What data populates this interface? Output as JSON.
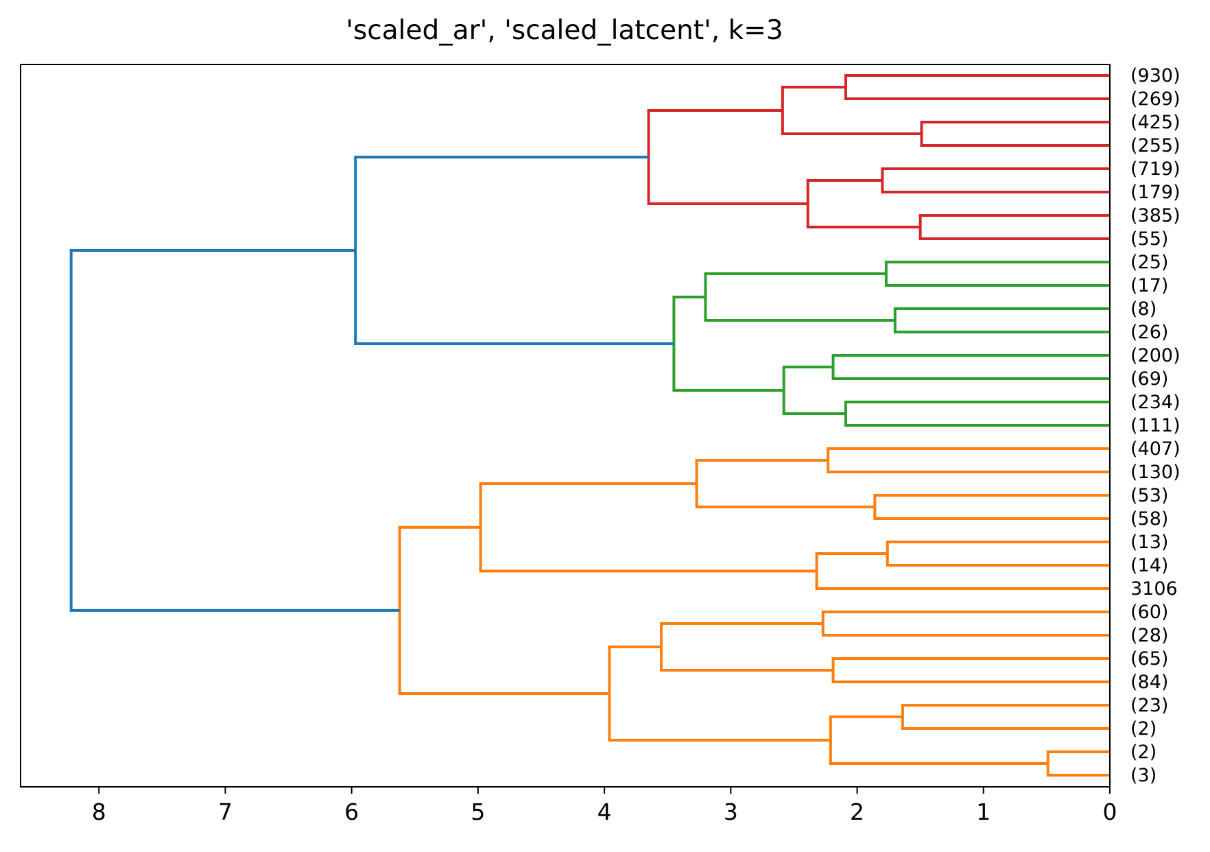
{
  "chart_data": {
    "type": "dendrogram",
    "orientation": "left",
    "title": "'scaled_ar', 'scaled_latcent', k=3",
    "xlabel": "",
    "ylabel": "",
    "xlim": [
      8.62,
      0
    ],
    "xticks": [
      8,
      7,
      6,
      5,
      4,
      3,
      2,
      1,
      0
    ],
    "leaves": [
      "(930)",
      "(269)",
      "(425)",
      "(255)",
      "(719)",
      "(179)",
      "(385)",
      "(55)",
      "(25)",
      "(17)",
      "(8)",
      "(26)",
      "(200)",
      "(69)",
      "(234)",
      "(111)",
      "(407)",
      "(130)",
      "(53)",
      "(58)",
      "(13)",
      "(14)",
      "3106",
      "(60)",
      "(28)",
      "(65)",
      "(84)",
      "(23)",
      "(2)",
      "(2)",
      "(3)"
    ],
    "colors": {
      "cluster_red": "#d62728",
      "cluster_green": "#2ca02c",
      "cluster_orange": "#ff7f0e",
      "above_threshold": "#1f77b4"
    },
    "merges": [
      {
        "id": "r1",
        "a": 0,
        "b": 1,
        "height": 2.09,
        "color": "cluster_red"
      },
      {
        "id": "r2",
        "a": 2,
        "b": 3,
        "height": 1.49,
        "color": "cluster_red"
      },
      {
        "id": "r3",
        "a": "r1",
        "b": "r2",
        "height": 2.59,
        "color": "cluster_red"
      },
      {
        "id": "r4",
        "a": 4,
        "b": 5,
        "height": 1.8,
        "color": "cluster_red"
      },
      {
        "id": "r5",
        "a": 6,
        "b": 7,
        "height": 1.5,
        "color": "cluster_red"
      },
      {
        "id": "r6",
        "a": "r4",
        "b": "r5",
        "height": 2.39,
        "color": "cluster_red"
      },
      {
        "id": "r7",
        "a": "r3",
        "b": "r6",
        "height": 3.65,
        "color": "cluster_red"
      },
      {
        "id": "g1",
        "a": 8,
        "b": 9,
        "height": 1.77,
        "color": "cluster_green"
      },
      {
        "id": "g2",
        "a": 10,
        "b": 11,
        "height": 1.7,
        "color": "cluster_green"
      },
      {
        "id": "g3",
        "a": "g1",
        "b": "g2",
        "height": 3.2,
        "color": "cluster_green"
      },
      {
        "id": "g4",
        "a": 12,
        "b": 13,
        "height": 2.19,
        "color": "cluster_green"
      },
      {
        "id": "g5",
        "a": 14,
        "b": 15,
        "height": 2.09,
        "color": "cluster_green"
      },
      {
        "id": "g6",
        "a": "g4",
        "b": "g5",
        "height": 2.58,
        "color": "cluster_green"
      },
      {
        "id": "g7",
        "a": "g3",
        "b": "g6",
        "height": 3.45,
        "color": "cluster_green"
      },
      {
        "id": "b1",
        "a": "r7",
        "b": "g7",
        "height": 5.97,
        "color": "above_threshold"
      },
      {
        "id": "o1",
        "a": 16,
        "b": 17,
        "height": 2.23,
        "color": "cluster_orange"
      },
      {
        "id": "o2",
        "a": 18,
        "b": 19,
        "height": 1.86,
        "color": "cluster_orange"
      },
      {
        "id": "o3",
        "a": "o1",
        "b": "o2",
        "height": 3.27,
        "color": "cluster_orange"
      },
      {
        "id": "o4",
        "a": 20,
        "b": 21,
        "height": 1.76,
        "color": "cluster_orange"
      },
      {
        "id": "o5",
        "a": "o4",
        "b": 22,
        "height": 2.32,
        "color": "cluster_orange"
      },
      {
        "id": "o6",
        "a": "o3",
        "b": "o5",
        "height": 4.98,
        "color": "cluster_orange"
      },
      {
        "id": "o7",
        "a": 23,
        "b": 24,
        "height": 2.27,
        "color": "cluster_orange"
      },
      {
        "id": "o8",
        "a": 25,
        "b": 26,
        "height": 2.19,
        "color": "cluster_orange"
      },
      {
        "id": "o9",
        "a": "o7",
        "b": "o8",
        "height": 3.55,
        "color": "cluster_orange"
      },
      {
        "id": "o10",
        "a": 27,
        "b": 28,
        "height": 1.64,
        "color": "cluster_orange"
      },
      {
        "id": "o11",
        "a": 29,
        "b": 30,
        "height": 0.49,
        "color": "cluster_orange"
      },
      {
        "id": "o12",
        "a": "o10",
        "b": "o11",
        "height": 2.21,
        "color": "cluster_orange"
      },
      {
        "id": "o13",
        "a": "o9",
        "b": "o12",
        "height": 3.96,
        "color": "cluster_orange"
      },
      {
        "id": "o14",
        "a": "o6",
        "b": "o13",
        "height": 5.62,
        "color": "cluster_orange"
      },
      {
        "id": "b2",
        "a": "b1",
        "b": "o14",
        "height": 8.22,
        "color": "above_threshold"
      }
    ]
  }
}
